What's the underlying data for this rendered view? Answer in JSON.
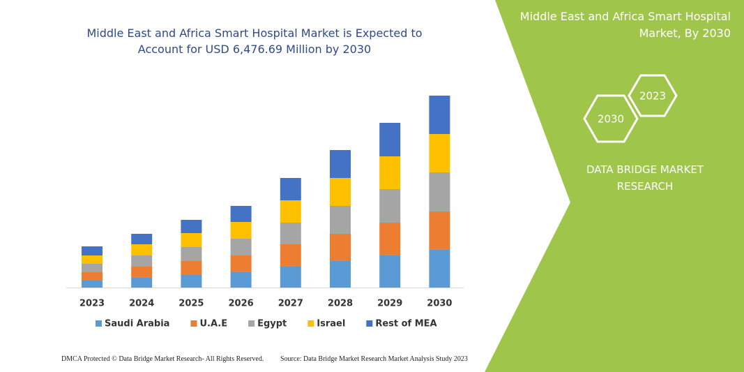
{
  "chart_data": {
    "type": "bar",
    "stacked": true,
    "title": "Middle East and Africa Smart Hospital Market is Expected to Account for USD 6,476.69 Million by 2030",
    "categories": [
      "2023",
      "2024",
      "2025",
      "2026",
      "2027",
      "2028",
      "2029",
      "2030"
    ],
    "series": [
      {
        "name": "Saudi Arabia",
        "color": "#5b9bd5",
        "values": [
          10,
          14,
          18,
          22,
          30,
          38,
          46,
          54
        ]
      },
      {
        "name": "U.A.E",
        "color": "#ed7d31",
        "values": [
          12,
          16,
          20,
          24,
          32,
          39,
          47,
          55
        ]
      },
      {
        "name": "Egypt",
        "color": "#a5a5a5",
        "values": [
          12,
          16,
          20,
          24,
          31,
          40,
          48,
          56
        ]
      },
      {
        "name": "Israel",
        "color": "#ffc000",
        "values": [
          12,
          16,
          20,
          24,
          32,
          40,
          47,
          55
        ]
      },
      {
        "name": "Rest of MEA",
        "color": "#4472c4",
        "values": [
          13,
          15,
          19,
          23,
          32,
          40,
          48,
          55
        ]
      }
    ]
  },
  "panel": {
    "title": "Middle East and Africa Smart Hospital Market, By 2030",
    "hexagons": [
      "2023",
      "2030"
    ],
    "brand": "DATA BRIDGE MARKET RESEARCH"
  },
  "footer": {
    "left": "DMCA Protected © Data Bridge Market Research- All Rights Reserved.",
    "right": "Source: Data Bridge Market Research Market Analysis Study 2023"
  }
}
